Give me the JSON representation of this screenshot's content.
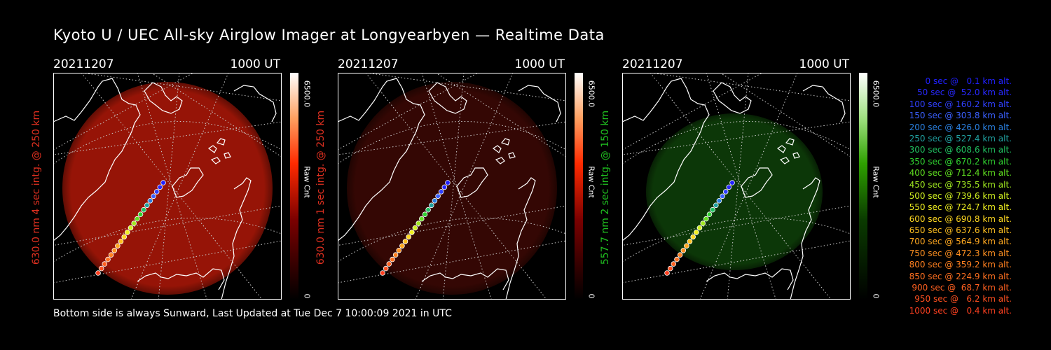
{
  "title": "Kyoto U / UEC All-sky Airglow Imager at Longyearbyen — Realtime Data",
  "footer": "Bottom side is always Sunward, Last Updated at Tue Dec  7 10:00:09 2021 in UTC",
  "panels": [
    {
      "date": "20211207",
      "time": "1000 UT",
      "ylabel": "630.0 nm 4 sec intg. @ 250 km",
      "label_color": "#e03020",
      "colorbar_max": "6500.0",
      "colorbar_min": "0",
      "colorbar_unit": "Raw Cnt",
      "glow_color": "#b01808",
      "glow_opacity": 0.85
    },
    {
      "date": "20211207",
      "time": "1000 UT",
      "ylabel": "630.0 nm 1 sec intg. @ 250 km",
      "label_color": "#e03020",
      "colorbar_max": "6500.0",
      "colorbar_min": "0",
      "colorbar_unit": "Raw Cnt",
      "glow_color": "#3a0804",
      "glow_opacity": 0.9
    },
    {
      "date": "20211207",
      "time": "1000 UT",
      "ylabel": "557.7 nm 2 sec intg. @ 150 km",
      "label_color": "#20c020",
      "colorbar_max": "6500.0",
      "colorbar_min": "0",
      "colorbar_unit": "Raw Cnt",
      "glow_color": "#0d3a08",
      "glow_opacity": 0.95
    }
  ],
  "legend": [
    {
      "text": "0 sec @   0.1 km alt.",
      "color": "#2020ff"
    },
    {
      "text": "50 sec @  52.0 km alt.",
      "color": "#2828ff"
    },
    {
      "text": "100 sec @ 160.2 km alt.",
      "color": "#3040ff"
    },
    {
      "text": "150 sec @ 303.8 km alt.",
      "color": "#3a60ff"
    },
    {
      "text": "200 sec @ 426.0 km alt.",
      "color": "#2a80e0"
    },
    {
      "text": "250 sec @ 527.4 km alt.",
      "color": "#20a0a0"
    },
    {
      "text": "300 sec @ 608.6 km alt.",
      "color": "#20c060"
    },
    {
      "text": "350 sec @ 670.2 km alt.",
      "color": "#30d030"
    },
    {
      "text": "400 sec @ 712.4 km alt.",
      "color": "#60e020"
    },
    {
      "text": "450 sec @ 735.5 km alt.",
      "color": "#a0e820"
    },
    {
      "text": "500 sec @ 739.6 km alt.",
      "color": "#d0f020"
    },
    {
      "text": "550 sec @ 724.7 km alt.",
      "color": "#f0f020"
    },
    {
      "text": "600 sec @ 690.8 km alt.",
      "color": "#ffd820"
    },
    {
      "text": "650 sec @ 637.6 km alt.",
      "color": "#ffc020"
    },
    {
      "text": "700 sec @ 564.9 km alt.",
      "color": "#ffa820"
    },
    {
      "text": "750 sec @ 472.3 km alt.",
      "color": "#ff9020"
    },
    {
      "text": "800 sec @ 359.2 km alt.",
      "color": "#ff8020"
    },
    {
      "text": "850 sec @ 224.9 km alt.",
      "color": "#ff7020"
    },
    {
      "text": "900 sec @  68.7 km alt.",
      "color": "#ff6020"
    },
    {
      "text": "950 sec @   6.2 km alt.",
      "color": "#ff5020"
    },
    {
      "text": "1000 sec @   0.4 km alt.",
      "color": "#ff4020"
    }
  ]
}
